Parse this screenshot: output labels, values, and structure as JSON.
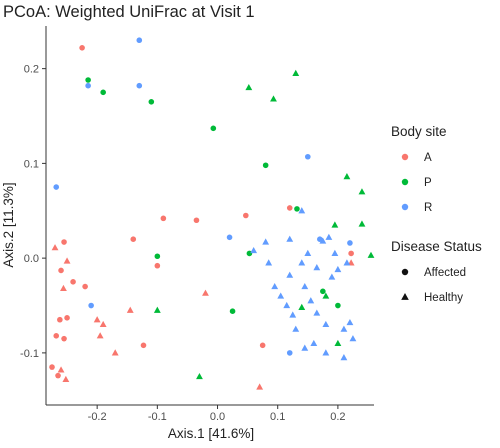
{
  "chart_data": {
    "type": "scatter",
    "title": "PCoA: Weighted UniFrac at Visit 1",
    "xlabel": "Axis.1   [41.6%]",
    "ylabel": "Axis.2   [11.3%]",
    "xlim": [
      -0.285,
      0.26
    ],
    "ylim": [
      -0.155,
      0.245
    ],
    "x_ticks": [
      -0.2,
      -0.1,
      0.0,
      0.1,
      0.2
    ],
    "x_tick_labels": [
      "-0.2",
      "-0.1",
      "0.0",
      "0.1",
      "0.2"
    ],
    "y_ticks": [
      -0.1,
      0.0,
      0.1,
      0.2
    ],
    "y_tick_labels": [
      "-0.1",
      "0.0",
      "0.1",
      "0.2"
    ],
    "grid": false,
    "legend_position": "right",
    "legend": {
      "color_title": "Body site",
      "color_entries": [
        {
          "label": "A",
          "color": "#F8766D"
        },
        {
          "label": "P",
          "color": "#00BA38"
        },
        {
          "label": "R",
          "color": "#619CFF"
        }
      ],
      "shape_title": "Disease  Status",
      "shape_entries": [
        {
          "label": "Affected",
          "shape": "circle"
        },
        {
          "label": "Healthy",
          "shape": "triangle"
        }
      ]
    },
    "series": [
      {
        "body_site": "A",
        "disease_status": "Affected",
        "color": "#F8766D",
        "shape": "circle",
        "points": [
          [
            -0.225,
            0.222
          ],
          [
            -0.255,
            0.017
          ],
          [
            -0.26,
            -0.013
          ],
          [
            -0.24,
            -0.025
          ],
          [
            -0.22,
            -0.03
          ],
          [
            -0.25,
            -0.063
          ],
          [
            -0.262,
            -0.065
          ],
          [
            -0.255,
            -0.085
          ],
          [
            -0.268,
            -0.082
          ],
          [
            -0.275,
            -0.115
          ],
          [
            -0.265,
            -0.124
          ],
          [
            -0.14,
            0.02
          ],
          [
            -0.09,
            0.042
          ],
          [
            -0.1,
            -0.008
          ],
          [
            -0.035,
            0.04
          ],
          [
            -0.123,
            -0.092
          ],
          [
            0.047,
            0.045
          ],
          [
            0.12,
            0.053
          ],
          [
            0.222,
            0.005
          ],
          [
            0.075,
            -0.092
          ]
        ]
      },
      {
        "body_site": "A",
        "disease_status": "Healthy",
        "color": "#F8766D",
        "shape": "triangle",
        "points": [
          [
            -0.27,
            0.011
          ],
          [
            -0.25,
            -0.003
          ],
          [
            -0.256,
            -0.032
          ],
          [
            -0.26,
            -0.118
          ],
          [
            -0.252,
            -0.128
          ],
          [
            -0.2,
            -0.065
          ],
          [
            -0.19,
            -0.07
          ],
          [
            -0.195,
            -0.082
          ],
          [
            -0.17,
            -0.1
          ],
          [
            -0.145,
            -0.055
          ],
          [
            -0.02,
            -0.037
          ],
          [
            0.07,
            -0.136
          ],
          [
            0.222,
            -0.005
          ]
        ]
      },
      {
        "body_site": "P",
        "disease_status": "Affected",
        "color": "#00BA38",
        "shape": "circle",
        "points": [
          [
            -0.215,
            0.188
          ],
          [
            -0.19,
            0.175
          ],
          [
            -0.11,
            0.165
          ],
          [
            -0.007,
            0.137
          ],
          [
            0.08,
            0.098
          ],
          [
            0.132,
            0.052
          ],
          [
            0.025,
            -0.056
          ],
          [
            0.053,
            0.005
          ],
          [
            -0.1,
            0.002
          ],
          [
            0.175,
            -0.035
          ],
          [
            0.2,
            -0.05
          ]
        ]
      },
      {
        "body_site": "P",
        "disease_status": "Healthy",
        "color": "#00BA38",
        "shape": "triangle",
        "points": [
          [
            0.052,
            0.18
          ],
          [
            0.093,
            0.168
          ],
          [
            0.13,
            0.195
          ],
          [
            0.215,
            0.086
          ],
          [
            0.24,
            0.07
          ],
          [
            0.24,
            0.036
          ],
          [
            0.195,
            0.035
          ],
          [
            0.255,
            0.003
          ],
          [
            0.14,
            -0.052
          ],
          [
            0.18,
            -0.04
          ],
          [
            0.2,
            -0.09
          ],
          [
            -0.1,
            -0.055
          ],
          [
            -0.03,
            -0.125
          ]
        ]
      },
      {
        "body_site": "R",
        "disease_status": "Affected",
        "color": "#619CFF",
        "shape": "circle",
        "points": [
          [
            -0.13,
            0.23
          ],
          [
            -0.215,
            0.182
          ],
          [
            -0.13,
            0.182
          ],
          [
            0.15,
            0.107
          ],
          [
            -0.268,
            0.075
          ],
          [
            0.02,
            0.022
          ],
          [
            0.17,
            0.02
          ],
          [
            0.22,
            0.016
          ],
          [
            -0.21,
            -0.05
          ],
          [
            0.12,
            -0.1
          ]
        ]
      },
      {
        "body_site": "R",
        "disease_status": "Healthy",
        "color": "#619CFF",
        "shape": "triangle",
        "points": [
          [
            0.14,
            0.05
          ],
          [
            0.12,
            0.02
          ],
          [
            0.08,
            0.017
          ],
          [
            0.15,
            0.005
          ],
          [
            0.175,
            0.018
          ],
          [
            0.185,
            0.022
          ],
          [
            0.195,
            0.005
          ],
          [
            0.2,
            -0.012
          ],
          [
            0.215,
            -0.005
          ],
          [
            0.06,
            0.008
          ],
          [
            0.085,
            -0.005
          ],
          [
            0.12,
            -0.018
          ],
          [
            0.14,
            -0.005
          ],
          [
            0.165,
            -0.01
          ],
          [
            0.19,
            -0.02
          ],
          [
            0.095,
            -0.03
          ],
          [
            0.105,
            -0.04
          ],
          [
            0.115,
            -0.05
          ],
          [
            0.125,
            -0.06
          ],
          [
            0.145,
            -0.03
          ],
          [
            0.155,
            -0.045
          ],
          [
            0.165,
            -0.058
          ],
          [
            0.18,
            -0.07
          ],
          [
            0.21,
            -0.075
          ],
          [
            0.22,
            -0.068
          ],
          [
            0.225,
            -0.085
          ],
          [
            0.13,
            -0.075
          ],
          [
            0.16,
            -0.09
          ],
          [
            0.18,
            -0.1
          ],
          [
            0.145,
            -0.095
          ],
          [
            0.21,
            -0.105
          ]
        ]
      }
    ]
  }
}
